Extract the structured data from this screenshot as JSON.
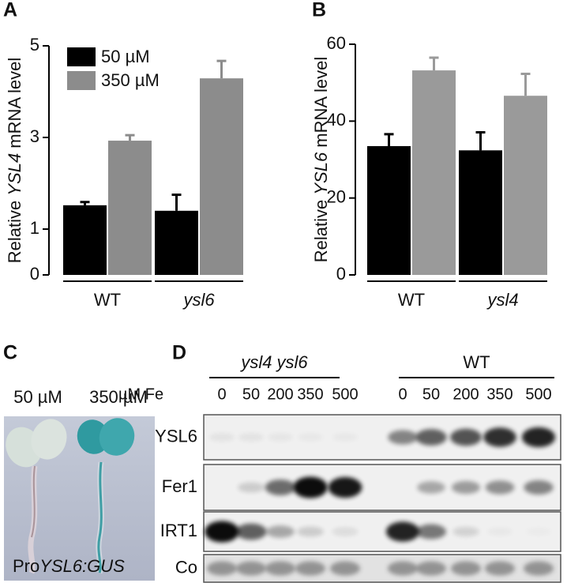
{
  "chart_data": [
    {
      "type": "bar",
      "panel": "A",
      "ylabel": [
        "Relative",
        "YSL4",
        "mRNA level"
      ],
      "categories": [
        "WT",
        "ysl6"
      ],
      "series": [
        {
          "name": "50 µM",
          "color": "#000000",
          "values": [
            1.52,
            1.4
          ],
          "errors": [
            0.07,
            0.35
          ]
        },
        {
          "name": "350 µM",
          "color": "#8c8c8c",
          "values": [
            2.93,
            4.29
          ],
          "errors": [
            0.12,
            0.38
          ]
        }
      ],
      "ylim": [
        0,
        5
      ],
      "yticks": [
        0,
        1,
        3,
        5
      ],
      "legend": "upper left"
    },
    {
      "type": "bar",
      "panel": "B",
      "ylabel": [
        "Relative",
        "YSL6",
        "mRNA level"
      ],
      "categories": [
        "WT",
        "ysl4"
      ],
      "series": [
        {
          "color": "#000000",
          "values": [
            33.5,
            32.4
          ],
          "errors": [
            3.1,
            4.7
          ]
        },
        {
          "color": "#9a9a9a",
          "values": [
            53.2,
            46.6
          ],
          "errors": [
            3.3,
            5.7
          ]
        }
      ],
      "ylim": [
        0,
        60
      ],
      "yticks": [
        0,
        20,
        40,
        60
      ],
      "legend": false
    }
  ],
  "panel_c": {
    "panel": "C",
    "labels": [
      "50 µM",
      "350 µM"
    ],
    "caption": [
      "Pro",
      "YSL6:GUS"
    ]
  },
  "panel_d": {
    "panel": "D",
    "unit": "µM Fe",
    "groups": [
      {
        "label": "ysl4 ysl6",
        "lanes": [
          0,
          50,
          200,
          350,
          500
        ]
      },
      {
        "label": "WT",
        "lanes": [
          0,
          50,
          200,
          350,
          500
        ]
      }
    ],
    "rows": [
      "YSL6",
      "Fer1",
      "IRT1",
      "Co"
    ]
  }
}
